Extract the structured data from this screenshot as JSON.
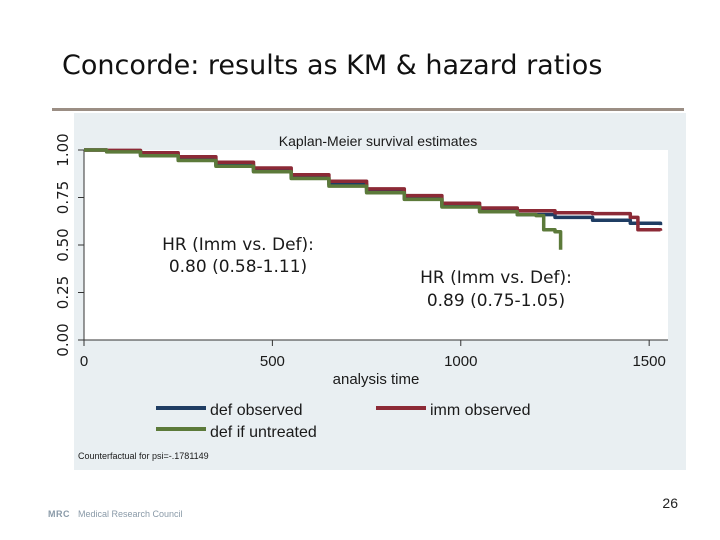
{
  "slide": {
    "title": "Concorde: results as KM & hazard ratios",
    "page_number": "26",
    "logo_mark": "MRC",
    "logo_text": "Medical Research Council"
  },
  "chart_data": {
    "type": "line",
    "title": "Kaplan-Meier survival estimates",
    "xlabel": "analysis time",
    "ylabel": "",
    "xlim": [
      0,
      1550
    ],
    "ylim": [
      0,
      1.0
    ],
    "x_ticks": [
      0,
      500,
      1000,
      1500
    ],
    "x_tick_labels": [
      "0",
      "500",
      "1000",
      "1500"
    ],
    "y_ticks": [
      0,
      0.25,
      0.5,
      0.75,
      1.0
    ],
    "y_tick_labels": [
      "0.00",
      "0.25",
      "0.50",
      "0.75",
      "1.00"
    ],
    "grid": false,
    "legend_position": "bottom",
    "series": [
      {
        "name": "def observed",
        "color": "#1f3d63",
        "points": [
          [
            0,
            1.0
          ],
          [
            60,
            0.995
          ],
          [
            150,
            0.975
          ],
          [
            250,
            0.95
          ],
          [
            350,
            0.92
          ],
          [
            450,
            0.89
          ],
          [
            550,
            0.855
          ],
          [
            650,
            0.82
          ],
          [
            750,
            0.78
          ],
          [
            850,
            0.745
          ],
          [
            950,
            0.705
          ],
          [
            1050,
            0.68
          ],
          [
            1150,
            0.66
          ],
          [
            1250,
            0.645
          ],
          [
            1350,
            0.63
          ],
          [
            1450,
            0.615
          ],
          [
            1530,
            0.605
          ]
        ]
      },
      {
        "name": "imm observed",
        "color": "#8c2a36",
        "points": [
          [
            0,
            1.0
          ],
          [
            60,
            0.998
          ],
          [
            150,
            0.985
          ],
          [
            250,
            0.965
          ],
          [
            350,
            0.935
          ],
          [
            450,
            0.905
          ],
          [
            550,
            0.87
          ],
          [
            650,
            0.835
          ],
          [
            750,
            0.795
          ],
          [
            850,
            0.76
          ],
          [
            950,
            0.72
          ],
          [
            1050,
            0.695
          ],
          [
            1150,
            0.68
          ],
          [
            1250,
            0.67
          ],
          [
            1350,
            0.665
          ],
          [
            1450,
            0.645
          ],
          [
            1470,
            0.58
          ],
          [
            1530,
            0.575
          ]
        ]
      },
      {
        "name": "def if untreated",
        "color": "#5c7a3a",
        "points": [
          [
            0,
            1.0
          ],
          [
            60,
            0.99
          ],
          [
            150,
            0.97
          ],
          [
            250,
            0.945
          ],
          [
            350,
            0.915
          ],
          [
            450,
            0.885
          ],
          [
            550,
            0.85
          ],
          [
            650,
            0.81
          ],
          [
            750,
            0.775
          ],
          [
            850,
            0.74
          ],
          [
            950,
            0.7
          ],
          [
            1050,
            0.675
          ],
          [
            1150,
            0.66
          ],
          [
            1200,
            0.655
          ],
          [
            1220,
            0.58
          ],
          [
            1250,
            0.57
          ],
          [
            1265,
            0.475
          ]
        ]
      }
    ],
    "annotations": [
      {
        "text_line1": "HR (Imm vs. Def):",
        "text_line2": "0.80 (0.58-1.11)"
      },
      {
        "text_line1": "HR (Imm vs. Def):",
        "text_line2": "0.89 (0.75-1.05)"
      }
    ],
    "footnote": "Counterfactual for psi=-.1781149"
  }
}
